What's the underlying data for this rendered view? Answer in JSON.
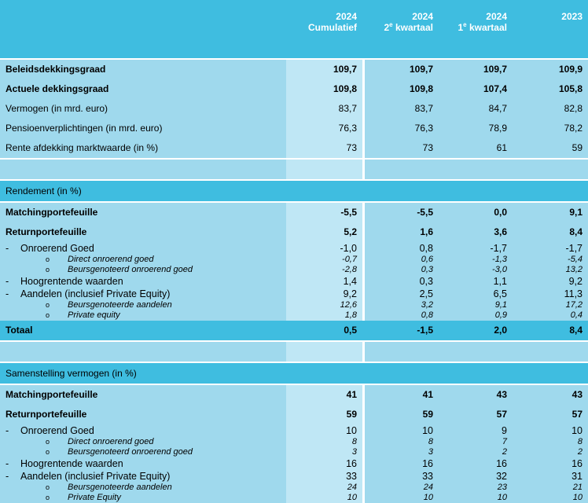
{
  "header": {
    "col1": {
      "year": "2024",
      "sub": "Cumulatief"
    },
    "col2": {
      "year": "2024",
      "sub_pre": "2",
      "sub_sup": "e",
      "sub_post": " kwartaal"
    },
    "col3": {
      "year": "2024",
      "sub_pre": "1",
      "sub_sup": "e",
      "sub_post": " kwartaal"
    },
    "col4": {
      "year": "2023",
      "sub": ""
    }
  },
  "top": [
    {
      "label": "Beleidsdekkingsgraad",
      "bold": true,
      "v": [
        "109,7",
        "109,7",
        "109,7",
        "109,9"
      ]
    },
    {
      "label": "Actuele dekkingsgraad",
      "bold": true,
      "v": [
        "109,8",
        "109,8",
        "107,4",
        "105,8"
      ]
    },
    {
      "label": "Vermogen (in mrd. euro)",
      "v": [
        "83,7",
        "83,7",
        "84,7",
        "82,8"
      ]
    },
    {
      "label": "Pensioenverplichtingen (in mrd. euro)",
      "v": [
        "76,3",
        "76,3",
        "78,9",
        "78,2"
      ]
    },
    {
      "label": "Rente afdekking marktwaarde (in %)",
      "v": [
        "73",
        "73",
        "61",
        "59"
      ]
    }
  ],
  "rendement": {
    "title": "Rendement (in %)",
    "matching": {
      "label": "Matchingportefeuille",
      "v": [
        "-5,5",
        "-5,5",
        "0,0",
        "9,1"
      ]
    },
    "return": {
      "label": "Returnportefeuille",
      "v": [
        "5,2",
        "1,6",
        "3,6",
        "8,4"
      ]
    },
    "og": {
      "dash": "-",
      "label": "Onroerend Goed",
      "v": [
        "-1,0",
        "0,8",
        "-1,7",
        "-1,7"
      ]
    },
    "og_direct": {
      "bullet": "o",
      "label": "Direct onroerend goed",
      "v": [
        "-0,7",
        "0,6",
        "-1,3",
        "-5,4"
      ]
    },
    "og_beurs": {
      "bullet": "o",
      "label": "Beursgenoteerd onroerend goed",
      "v": [
        "-2,8",
        "0,3",
        "-3,0",
        "13,2"
      ]
    },
    "hoog": {
      "dash": "-",
      "label": "Hoogrentende waarden",
      "v": [
        "1,4",
        "0,3",
        "1,1",
        "9,2"
      ]
    },
    "aandelen": {
      "dash": "-",
      "label": "Aandelen (inclusief Private Equity)",
      "v": [
        "9,2",
        "2,5",
        "6,5",
        "11,3"
      ]
    },
    "beurs_aand": {
      "bullet": "o",
      "label": "Beursgenoteerde aandelen",
      "v": [
        "12,6",
        "3,2",
        "9,1",
        "17,2"
      ]
    },
    "pe": {
      "bullet": "o",
      "label": "Private equity",
      "v": [
        "1,8",
        "0,8",
        "0,9",
        "0,4"
      ]
    },
    "totaal": {
      "label": "Totaal",
      "v": [
        "0,5",
        "-1,5",
        "2,0",
        "8,4"
      ]
    }
  },
  "samenstelling": {
    "title": "Samenstelling vermogen (in %)",
    "matching": {
      "label": "Matchingportefeuille",
      "v": [
        "41",
        "41",
        "43",
        "43"
      ]
    },
    "return": {
      "label": "Returnportefeuille",
      "v": [
        "59",
        "59",
        "57",
        "57"
      ]
    },
    "og": {
      "dash": "-",
      "label": "Onroerend Goed",
      "v": [
        "10",
        "10",
        "9",
        "10"
      ]
    },
    "og_direct": {
      "bullet": "o",
      "label": "Direct onroerend goed",
      "v": [
        "8",
        "8",
        "7",
        "8"
      ]
    },
    "og_beurs": {
      "bullet": "o",
      "label": "Beursgenoteerd onroerend goed",
      "v": [
        "3",
        "3",
        "2",
        "2"
      ]
    },
    "hoog": {
      "dash": "-",
      "label": "Hoogrentende waarden",
      "v": [
        "16",
        "16",
        "16",
        "16"
      ]
    },
    "aandelen": {
      "dash": "-",
      "label": "Aandelen (inclusief Private Equity)",
      "v": [
        "33",
        "33",
        "32",
        "31"
      ]
    },
    "beurs_aand": {
      "bullet": "o",
      "label": "Beursgenoteerde aandelen",
      "v": [
        "24",
        "24",
        "23",
        "21"
      ]
    },
    "pe": {
      "bullet": "o",
      "label": "Private Equity",
      "v": [
        "10",
        "10",
        "10",
        "10"
      ]
    }
  }
}
